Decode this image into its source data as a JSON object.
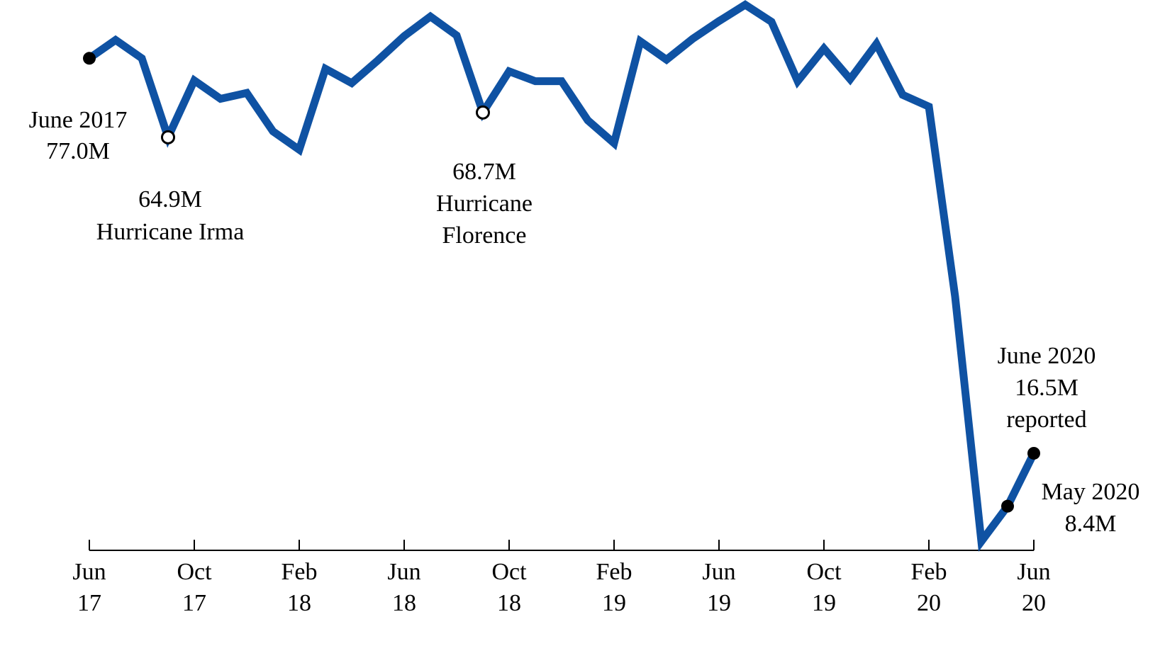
{
  "chart_data": {
    "type": "line",
    "title": "",
    "xlabel": "",
    "ylabel": "",
    "unit": "M",
    "x_ticks": [
      {
        "month": "2017-06",
        "line1": "Jun",
        "line2": "17"
      },
      {
        "month": "2017-10",
        "line1": "Oct",
        "line2": "17"
      },
      {
        "month": "2018-02",
        "line1": "Feb",
        "line2": "18"
      },
      {
        "month": "2018-06",
        "line1": "Jun",
        "line2": "18"
      },
      {
        "month": "2018-10",
        "line1": "Oct",
        "line2": "18"
      },
      {
        "month": "2019-02",
        "line1": "Feb",
        "line2": "19"
      },
      {
        "month": "2019-06",
        "line1": "Jun",
        "line2": "19"
      },
      {
        "month": "2019-10",
        "line1": "Oct",
        "line2": "19"
      },
      {
        "month": "2020-02",
        "line1": "Feb",
        "line2": "20"
      },
      {
        "month": "2020-06",
        "line1": "Jun",
        "line2": "20"
      }
    ],
    "x_range": [
      "2017-06",
      "2020-06"
    ],
    "ylim": [
      5,
      83
    ],
    "grid": false,
    "legend": "none",
    "series": [
      {
        "color": "#0f52a3",
        "points": [
          {
            "x": "2017-06",
            "y": 77.0
          },
          {
            "x": "2017-07",
            "y": 79.8
          },
          {
            "x": "2017-08",
            "y": 77.0
          },
          {
            "x": "2017-09",
            "y": 64.9
          },
          {
            "x": "2017-10",
            "y": 73.6
          },
          {
            "x": "2017-11",
            "y": 70.8
          },
          {
            "x": "2017-12",
            "y": 71.7
          },
          {
            "x": "2018-01",
            "y": 65.8
          },
          {
            "x": "2018-02",
            "y": 63.0
          },
          {
            "x": "2018-03",
            "y": 75.4
          },
          {
            "x": "2018-04",
            "y": 73.2
          },
          {
            "x": "2018-05",
            "y": 76.7
          },
          {
            "x": "2018-06",
            "y": 80.4
          },
          {
            "x": "2018-07",
            "y": 83.4
          },
          {
            "x": "2018-08",
            "y": 80.5
          },
          {
            "x": "2018-09",
            "y": 68.7
          },
          {
            "x": "2018-10",
            "y": 75.0
          },
          {
            "x": "2018-11",
            "y": 73.5
          },
          {
            "x": "2018-12",
            "y": 73.5
          },
          {
            "x": "2019-01",
            "y": 67.5
          },
          {
            "x": "2019-02",
            "y": 64.0
          },
          {
            "x": "2019-03",
            "y": 79.6
          },
          {
            "x": "2019-04",
            "y": 76.8
          },
          {
            "x": "2019-05",
            "y": 80.0
          },
          {
            "x": "2019-06",
            "y": 82.7
          },
          {
            "x": "2019-07",
            "y": 85.2
          },
          {
            "x": "2019-08",
            "y": 82.6
          },
          {
            "x": "2019-09",
            "y": 73.5
          },
          {
            "x": "2019-10",
            "y": 78.5
          },
          {
            "x": "2019-11",
            "y": 73.8
          },
          {
            "x": "2019-12",
            "y": 79.2
          },
          {
            "x": "2020-01",
            "y": 71.4
          },
          {
            "x": "2020-02",
            "y": 69.6
          },
          {
            "x": "2020-03",
            "y": 40.5
          },
          {
            "x": "2020-04",
            "y": 3.0
          },
          {
            "x": "2020-05",
            "y": 8.4
          },
          {
            "x": "2020-06",
            "y": 16.5
          }
        ]
      }
    ],
    "markers": [
      {
        "x": "2017-06",
        "style": "filled"
      },
      {
        "x": "2017-09",
        "style": "open"
      },
      {
        "x": "2018-09",
        "style": "open"
      },
      {
        "x": "2020-05",
        "style": "filled"
      },
      {
        "x": "2020-06",
        "style": "filled"
      }
    ],
    "annotations": [
      {
        "anchor": "2017-06",
        "lines": [
          "June 2017",
          "77.0M"
        ]
      },
      {
        "anchor": "2017-09",
        "lines": [
          "64.9M",
          "Hurricane Irma"
        ]
      },
      {
        "anchor": "2018-09",
        "lines": [
          "68.7M",
          "Hurricane",
          "Florence"
        ]
      },
      {
        "anchor": "2020-06",
        "lines": [
          "June 2020",
          "16.5M",
          "reported"
        ]
      },
      {
        "anchor": "2020-05",
        "lines": [
          "May 2020",
          "8.4M"
        ]
      }
    ]
  }
}
